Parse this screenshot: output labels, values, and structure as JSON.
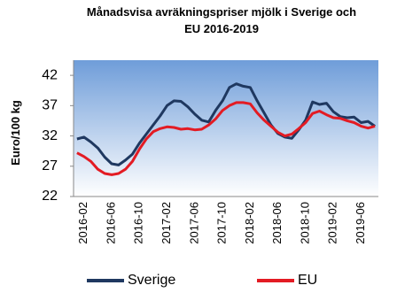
{
  "chart_data": {
    "type": "line",
    "title": [
      "Månadsvisa avräkningspriser mjölk i Sverige och",
      "EU 2016-2019"
    ],
    "y_label": "Euro/100 kg",
    "categories": [
      null,
      "2016-02",
      null,
      null,
      null,
      "2016-06",
      null,
      null,
      null,
      "2016-10",
      null,
      null,
      null,
      "2017-02",
      null,
      null,
      null,
      "2017-06",
      null,
      null,
      null,
      "2017-10",
      null,
      null,
      null,
      "2018-02",
      null,
      null,
      null,
      "2018-06",
      null,
      null,
      null,
      "2018-10",
      null,
      null,
      null,
      "2019-02",
      null,
      null,
      null,
      "2019-06",
      null,
      null
    ],
    "series": [
      {
        "name": "Sverige",
        "color": "#1f3860",
        "values": [
          31.5,
          31.8,
          31,
          30,
          28.5,
          27.4,
          27.2,
          28,
          29,
          30.8,
          32.3,
          33.8,
          35.3,
          37,
          37.8,
          37.7,
          36.8,
          35.6,
          34.6,
          34.3,
          36.2,
          37.8,
          40,
          40.6,
          40.2,
          40,
          37.8,
          35.8,
          33.8,
          32.4,
          31.8,
          31.6,
          33,
          34.6,
          37.6,
          37.2,
          37.4,
          36,
          35.2,
          35,
          35.1,
          34.2,
          34.4,
          33.6
        ]
      },
      {
        "name": "EU",
        "color": "#e31b23",
        "values": [
          29.2,
          28.6,
          27.8,
          26.5,
          25.8,
          25.6,
          25.8,
          26.5,
          27.8,
          29.8,
          31.5,
          32.7,
          33.2,
          33.5,
          33.4,
          33.1,
          33.2,
          33,
          33.1,
          33.8,
          34.8,
          36.2,
          37,
          37.5,
          37.5,
          37.3,
          35.8,
          34.6,
          33.6,
          32.6,
          32,
          32.3,
          33.2,
          34.2,
          35.7,
          36.1,
          35.5,
          35,
          34.9,
          34.5,
          34.2,
          33.6,
          33.3,
          33.6
        ]
      }
    ],
    "ylim": [
      22,
      44.5
    ],
    "yticks": [
      22,
      27,
      32,
      37,
      42
    ],
    "grid": false,
    "legend": "bottom"
  }
}
